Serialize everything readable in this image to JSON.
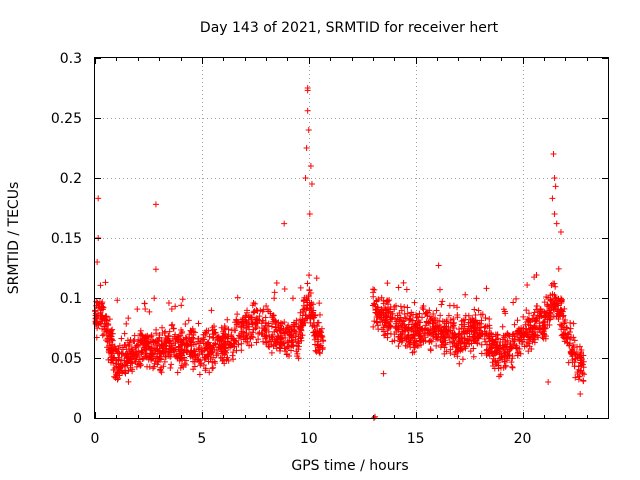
{
  "chart_data": {
    "type": "scatter",
    "title": "Day 143 of 2021, SRMTID for receiver hert",
    "xlabel": "GPS time / hours",
    "ylabel": "SRMTID / TECUs",
    "xlim": [
      0,
      24
    ],
    "ylim": [
      0,
      0.3
    ],
    "x_ticks": [
      0,
      5,
      10,
      15,
      20
    ],
    "x_tick_labels": [
      "0",
      "5",
      "10",
      "15",
      "20"
    ],
    "y_ticks": [
      0,
      0.05,
      0.1,
      0.15,
      0.2,
      0.25,
      0.3
    ],
    "y_tick_labels": [
      "0",
      "0.05",
      "0.1",
      "0.15",
      "0.2",
      "0.25",
      "0.3"
    ],
    "grid": true,
    "marker": "+",
    "color": "#ff0000",
    "series": [
      {
        "name": "SRMTID",
        "data_segments": [
          {
            "t_start": 0.0,
            "t_end": 10.7,
            "approx_count": 1200
          },
          {
            "t_start": 13.0,
            "t_end": 22.9,
            "approx_count": 1100
          }
        ],
        "baseline": [
          [
            0.0,
            0.08
          ],
          [
            0.3,
            0.09
          ],
          [
            0.6,
            0.07
          ],
          [
            1.0,
            0.045
          ],
          [
            1.5,
            0.05
          ],
          [
            2.0,
            0.055
          ],
          [
            2.5,
            0.06
          ],
          [
            3.0,
            0.055
          ],
          [
            3.5,
            0.06
          ],
          [
            4.0,
            0.058
          ],
          [
            4.5,
            0.06
          ],
          [
            5.0,
            0.055
          ],
          [
            5.5,
            0.06
          ],
          [
            6.0,
            0.058
          ],
          [
            6.5,
            0.065
          ],
          [
            7.0,
            0.075
          ],
          [
            7.5,
            0.08
          ],
          [
            8.0,
            0.075
          ],
          [
            8.5,
            0.07
          ],
          [
            9.0,
            0.065
          ],
          [
            9.5,
            0.07
          ],
          [
            10.0,
            0.1
          ],
          [
            10.3,
            0.07
          ],
          [
            10.7,
            0.06
          ],
          [
            13.0,
            0.09
          ],
          [
            13.5,
            0.085
          ],
          [
            14.0,
            0.08
          ],
          [
            14.5,
            0.075
          ],
          [
            15.0,
            0.07
          ],
          [
            15.5,
            0.075
          ],
          [
            16.0,
            0.07
          ],
          [
            16.5,
            0.068
          ],
          [
            17.0,
            0.065
          ],
          [
            17.5,
            0.07
          ],
          [
            18.0,
            0.075
          ],
          [
            18.5,
            0.06
          ],
          [
            19.0,
            0.055
          ],
          [
            19.5,
            0.06
          ],
          [
            20.0,
            0.07
          ],
          [
            20.5,
            0.075
          ],
          [
            21.0,
            0.08
          ],
          [
            21.5,
            0.1
          ],
          [
            22.0,
            0.075
          ],
          [
            22.5,
            0.05
          ],
          [
            22.9,
            0.04
          ]
        ],
        "notable_points": [
          {
            "x": 0.15,
            "y": 0.183
          },
          {
            "x": 0.15,
            "y": 0.15
          },
          {
            "x": 0.1,
            "y": 0.13
          },
          {
            "x": 2.85,
            "y": 0.178
          },
          {
            "x": 2.85,
            "y": 0.124
          },
          {
            "x": 9.95,
            "y": 0.275
          },
          {
            "x": 9.95,
            "y": 0.273
          },
          {
            "x": 9.95,
            "y": 0.256
          },
          {
            "x": 10.0,
            "y": 0.24
          },
          {
            "x": 10.1,
            "y": 0.21
          },
          {
            "x": 10.15,
            "y": 0.195
          },
          {
            "x": 9.9,
            "y": 0.225
          },
          {
            "x": 9.85,
            "y": 0.2
          },
          {
            "x": 10.05,
            "y": 0.17
          },
          {
            "x": 8.85,
            "y": 0.162
          },
          {
            "x": 13.05,
            "y": 0.0
          },
          {
            "x": 13.1,
            "y": 0.001
          },
          {
            "x": 13.5,
            "y": 0.037
          },
          {
            "x": 21.45,
            "y": 0.22
          },
          {
            "x": 21.5,
            "y": 0.2
          },
          {
            "x": 21.55,
            "y": 0.193
          },
          {
            "x": 21.4,
            "y": 0.183
          },
          {
            "x": 21.5,
            "y": 0.17
          },
          {
            "x": 21.6,
            "y": 0.162
          },
          {
            "x": 21.8,
            "y": 0.155
          },
          {
            "x": 21.2,
            "y": 0.03
          },
          {
            "x": 22.7,
            "y": 0.02
          }
        ]
      }
    ]
  }
}
